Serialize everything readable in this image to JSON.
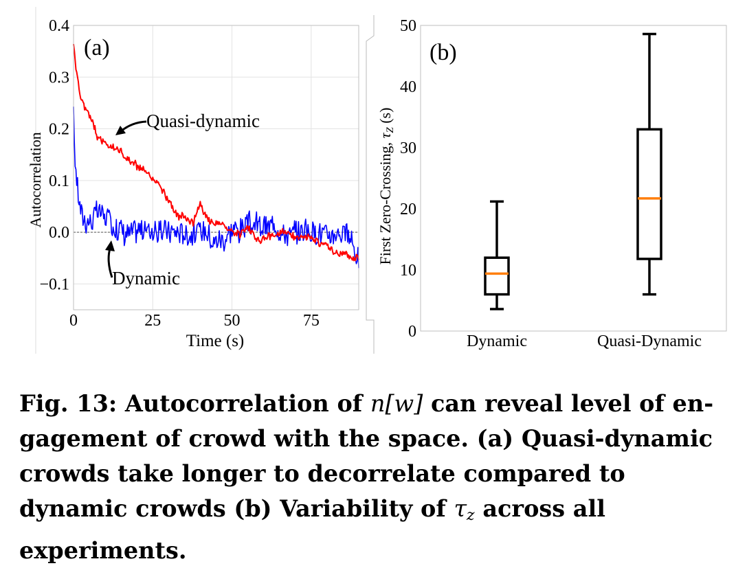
{
  "chart_data": [
    {
      "type": "line",
      "panel_label": "(a)",
      "xlabel": "Time (s)",
      "ylabel": "Autocorrelation",
      "xlim": [
        0,
        90
      ],
      "ylim": [
        -0.15,
        0.4
      ],
      "xticks": [
        0,
        25,
        50,
        75
      ],
      "xtick_labels": [
        "0",
        "25",
        "50",
        "75"
      ],
      "yticks": [
        0.4,
        0.3,
        0.2,
        0.1,
        0.0,
        -0.1
      ],
      "ytick_labels": [
        "0.4",
        "0.3",
        "0.2",
        "0.1",
        "0.0",
        "−0.1"
      ],
      "grid": true,
      "reference_line": 0.0,
      "series": [
        {
          "name": "Quasi-dynamic",
          "color": "#ff0000",
          "x": [
            0,
            1,
            2,
            4,
            6,
            8,
            10,
            12,
            14,
            16,
            18,
            20,
            22,
            25,
            28,
            30,
            32,
            35,
            38,
            40,
            42,
            45,
            48,
            50,
            55,
            60,
            65,
            70,
            75,
            80,
            85,
            90
          ],
          "values": [
            0.36,
            0.31,
            0.27,
            0.23,
            0.21,
            0.18,
            0.175,
            0.18,
            0.165,
            0.15,
            0.135,
            0.12,
            0.11,
            0.095,
            0.08,
            0.06,
            0.035,
            0.025,
            0.02,
            0.05,
            0.025,
            0.02,
            0.01,
            0.005,
            0.005,
            -0.01,
            0.0,
            -0.01,
            -0.015,
            -0.03,
            -0.045,
            -0.05
          ]
        },
        {
          "name": "Dynamic",
          "color": "#0000ff",
          "x": [
            0,
            0.5,
            1,
            1.5,
            2,
            3,
            5,
            8,
            12,
            20,
            30,
            40,
            50,
            55,
            60,
            65,
            70,
            75,
            80,
            85,
            88,
            90
          ],
          "values": [
            0.22,
            0.14,
            0.1,
            0.075,
            0.055,
            0.04,
            0.02,
            0.04,
            0.02,
            0.0,
            0.01,
            0.0,
            -0.005,
            0.015,
            0.005,
            0.01,
            0.0,
            0.01,
            0.0,
            -0.01,
            -0.02,
            -0.05
          ]
        }
      ],
      "annotations": [
        {
          "text": "Quasi-dynamic"
        },
        {
          "text": "Dynamic"
        }
      ]
    },
    {
      "type": "box",
      "panel_label": "(b)",
      "ylabel": "First Zero-Crossing, τZ (s)",
      "ylabel_main": "First Zero-Crossing,",
      "ylabel_sym": "τ",
      "ylabel_sub": "Z",
      "ylabel_unit": "(s)",
      "ylim": [
        0,
        50
      ],
      "yticks": [
        0,
        10,
        20,
        30,
        40,
        50
      ],
      "ytick_labels": [
        "0",
        "10",
        "20",
        "30",
        "40",
        "50"
      ],
      "grid": false,
      "categories": [
        "Dynamic",
        "Quasi-Dynamic"
      ],
      "boxes": [
        {
          "name": "Dynamic",
          "whisker_low": 3.6,
          "q1": 6.0,
          "median": 9.4,
          "q3": 12.0,
          "whisker_high": 21.2
        },
        {
          "name": "Quasi-Dynamic",
          "whisker_low": 6.0,
          "q1": 11.8,
          "median": 21.7,
          "q3": 33.0,
          "whisker_high": 48.6
        }
      ],
      "median_color": "#ff7f0e"
    }
  ],
  "caption": {
    "label": "Fig. 13:",
    "part1": "Autocorrelation of",
    "math_n": "n",
    "math_w": "[w]",
    "part2": "can reveal level of en-gagement of crowd with the space. (a) Quasi-dynamic crowds take longer to decorrelate compared to dynamic crowds (b) Variability of",
    "math_tau": "τ",
    "math_tau_sub": "z",
    "part3": "across all experiments."
  }
}
